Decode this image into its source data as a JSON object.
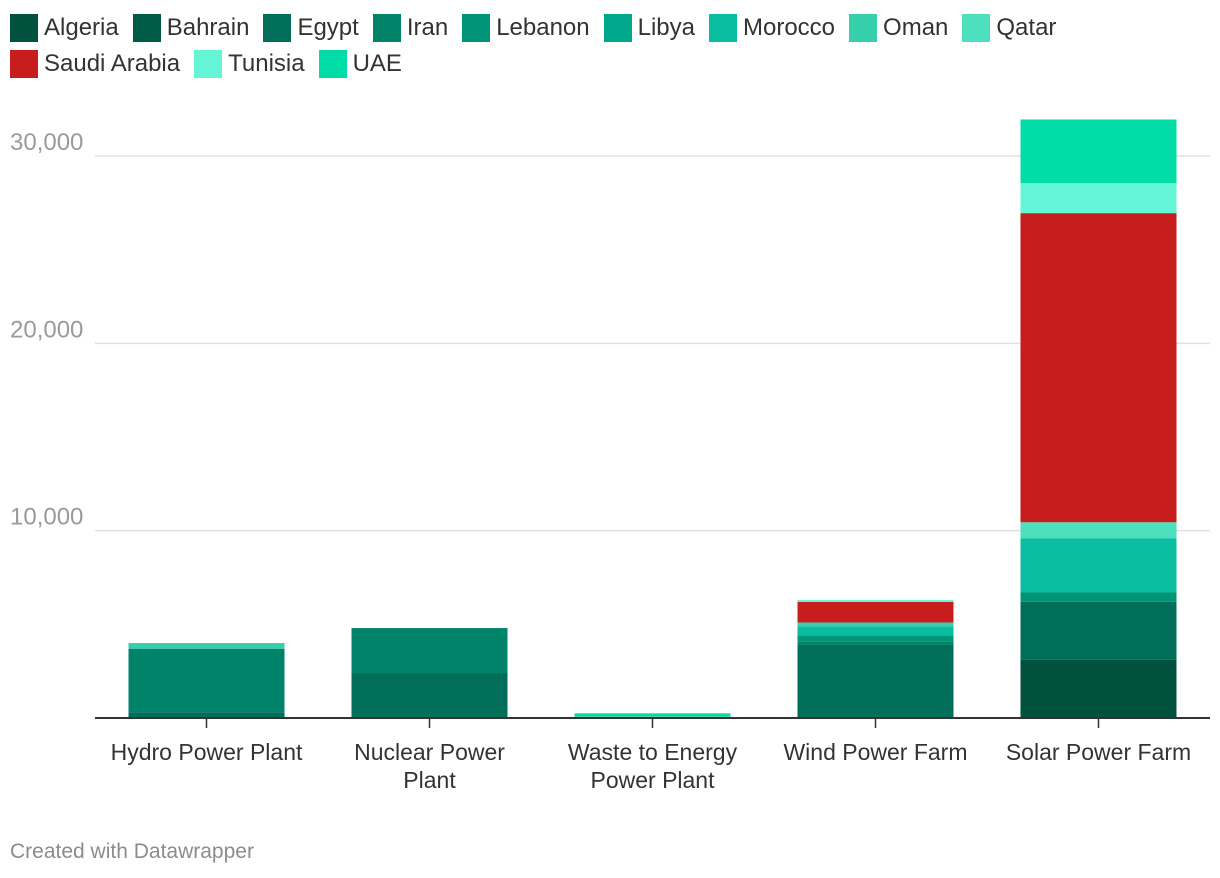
{
  "chart_data": {
    "type": "bar",
    "stacked": true,
    "categories": [
      "Hydro Power Plant",
      "Nuclear Power Plant",
      "Waste to Energy Power Plant",
      "Wind Power Farm",
      "Solar Power Farm"
    ],
    "category_lines": [
      [
        "Hydro Power Plant"
      ],
      [
        "Nuclear Power",
        "Plant"
      ],
      [
        "Waste to Energy",
        "Power Plant"
      ],
      [
        "Wind Power Farm"
      ],
      [
        "Solar Power Farm"
      ]
    ],
    "series": [
      {
        "name": "Algeria",
        "color": "#00513d",
        "values": [
          0,
          0,
          0,
          0,
          3100
        ]
      },
      {
        "name": "Bahrain",
        "color": "#005c47",
        "values": [
          0,
          0,
          0,
          0,
          0
        ]
      },
      {
        "name": "Egypt",
        "color": "#006e58",
        "values": [
          300,
          2400,
          0,
          3900,
          3100
        ]
      },
      {
        "name": "Iran",
        "color": "#008369",
        "values": [
          3400,
          2400,
          0,
          200,
          0
        ]
      },
      {
        "name": "Lebanon",
        "color": "#009478",
        "values": [
          0,
          0,
          0,
          300,
          500
        ]
      },
      {
        "name": "Libya",
        "color": "#00a88b",
        "values": [
          0,
          0,
          0,
          0,
          0
        ]
      },
      {
        "name": "Morocco",
        "color": "#0bbda0",
        "values": [
          0,
          0,
          0,
          500,
          2900
        ]
      },
      {
        "name": "Oman",
        "color": "#36cfac",
        "values": [
          300,
          0,
          100,
          200,
          0
        ]
      },
      {
        "name": "Qatar",
        "color": "#4ddfbe",
        "values": [
          0,
          0,
          0,
          0,
          850
        ]
      },
      {
        "name": "Saudi Arabia",
        "color": "#c71e1d",
        "values": [
          0,
          0,
          0,
          1100,
          16500
        ]
      },
      {
        "name": "Tunisia",
        "color": "#63f5d5",
        "values": [
          0,
          0,
          0,
          100,
          1600
        ]
      },
      {
        "name": "UAE",
        "color": "#02dda7",
        "values": [
          0,
          0,
          150,
          0,
          3400
        ]
      }
    ],
    "yticks": [
      10000,
      20000,
      30000
    ],
    "ytick_labels": [
      "10,000",
      "20,000",
      "30,000"
    ],
    "ylim": [
      0,
      32500
    ],
    "grid": true,
    "legend_position": "top-left",
    "title": "",
    "xlabel": "",
    "ylabel": ""
  },
  "legend_rows": [
    [
      "Algeria",
      "Bahrain",
      "Egypt",
      "Iran",
      "Lebanon",
      "Libya",
      "Morocco",
      "Oman",
      "Qatar"
    ],
    [
      "Saudi Arabia",
      "Tunisia",
      "UAE"
    ]
  ],
  "footer": "Created with Datawrapper"
}
